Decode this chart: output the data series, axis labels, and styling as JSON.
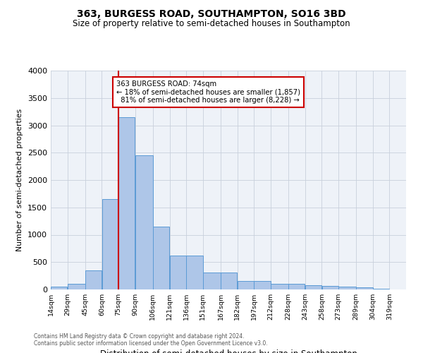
{
  "title": "363, BURGESS ROAD, SOUTHAMPTON, SO16 3BD",
  "subtitle": "Size of property relative to semi-detached houses in Southampton",
  "xlabel": "Distribution of semi-detached houses by size in Southampton",
  "ylabel": "Number of semi-detached properties",
  "footnote1": "Contains HM Land Registry data © Crown copyright and database right 2024.",
  "footnote2": "Contains public sector information licensed under the Open Government Licence v3.0.",
  "property_label": "363 BURGESS ROAD: 74sqm",
  "smaller_pct": 18,
  "smaller_count": 1857,
  "larger_pct": 81,
  "larger_count": 8228,
  "bin_labels": [
    "14sqm",
    "29sqm",
    "45sqm",
    "60sqm",
    "75sqm",
    "90sqm",
    "106sqm",
    "121sqm",
    "136sqm",
    "151sqm",
    "167sqm",
    "182sqm",
    "197sqm",
    "212sqm",
    "228sqm",
    "243sqm",
    "258sqm",
    "273sqm",
    "289sqm",
    "304sqm",
    "319sqm"
  ],
  "bin_edges": [
    14,
    29,
    45,
    60,
    75,
    90,
    106,
    121,
    136,
    151,
    167,
    182,
    197,
    212,
    228,
    243,
    258,
    273,
    289,
    304,
    319,
    334
  ],
  "bar_heights": [
    50,
    100,
    350,
    1650,
    3150,
    2450,
    1150,
    620,
    620,
    310,
    310,
    160,
    155,
    100,
    100,
    75,
    60,
    55,
    40,
    15,
    5
  ],
  "bar_color": "#aec6e8",
  "bar_edge_color": "#5b9bd5",
  "vline_color": "#cc0000",
  "vline_x": 75,
  "annotation_box_color": "#cc0000",
  "bg_color": "#eef2f8",
  "grid_color": "#c8d0dc",
  "ylim": [
    0,
    4000
  ],
  "yticks": [
    0,
    500,
    1000,
    1500,
    2000,
    2500,
    3000,
    3500,
    4000
  ]
}
